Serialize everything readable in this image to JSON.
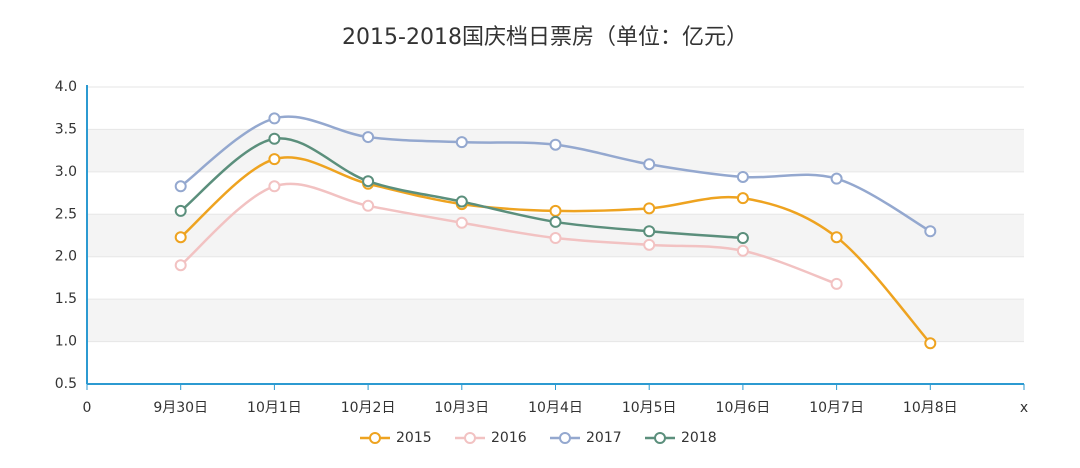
{
  "chart_data": {
    "type": "line",
    "title": "2015-2018国庆档日票房（单位：亿元）",
    "categories": [
      "0",
      "9月30日",
      "10月1日",
      "10月2日",
      "10月3日",
      "10月4日",
      "10月5日",
      "10月6日",
      "10月7日",
      "10月8日",
      "x"
    ],
    "series": [
      {
        "name": "2015",
        "color": "#eea320",
        "values": [
          null,
          2.23,
          3.15,
          2.86,
          2.62,
          2.54,
          2.57,
          2.69,
          2.23,
          0.98,
          null
        ]
      },
      {
        "name": "2016",
        "color": "#f2c2c2",
        "values": [
          null,
          1.9,
          2.83,
          2.6,
          2.4,
          2.22,
          2.14,
          2.07,
          1.68,
          null,
          null
        ]
      },
      {
        "name": "2017",
        "color": "#94a8cf",
        "values": [
          null,
          2.83,
          3.63,
          3.41,
          3.35,
          3.32,
          3.09,
          2.94,
          2.92,
          2.3,
          null
        ]
      },
      {
        "name": "2018",
        "color": "#5b8f7c",
        "values": [
          null,
          2.54,
          3.39,
          2.89,
          2.65,
          2.41,
          2.3,
          2.22,
          null,
          null,
          null
        ]
      }
    ],
    "ylim": [
      0.5,
      4.0
    ],
    "yticks": [
      0.5,
      {
        "value": 1,
        "label": "1.0"
      },
      1.5,
      {
        "value": 2,
        "label": "2.0"
      },
      2.5,
      {
        "value": 3,
        "label": "3.0"
      },
      3.5,
      {
        "value": 4,
        "label": "4.0"
      }
    ],
    "grid": true
  }
}
